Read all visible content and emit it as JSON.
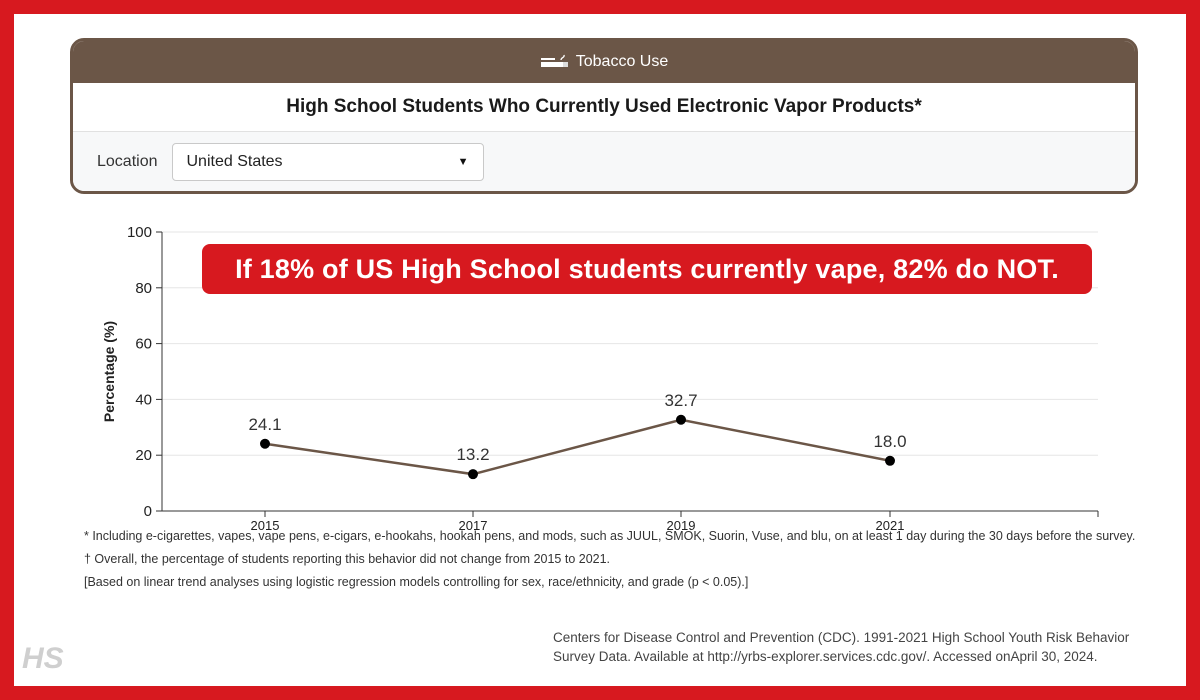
{
  "panel": {
    "category": "Tobacco Use",
    "title": "High School Students Who Currently Used Electronic Vapor Products*",
    "location_label": "Location",
    "location_value": "United States",
    "colors": {
      "header_bg": "#6b5647",
      "line": "#6b5647"
    }
  },
  "callout": "If 18% of US High School students currently vape, 82% do NOT.",
  "chart_data": {
    "type": "line",
    "title": "",
    "xlabel": "",
    "ylabel": "Percentage (%)",
    "x": [
      "2015",
      "2017",
      "2019",
      "2021"
    ],
    "series": [
      {
        "values": [
          24.1,
          13.2,
          32.7,
          18.0
        ],
        "labels": [
          "24.1",
          "13.2",
          "32.7",
          "18.0"
        ]
      }
    ],
    "ylim": [
      0,
      100
    ],
    "yticks": [
      0,
      20,
      40,
      60,
      80,
      100
    ],
    "grid": true,
    "legend": "none"
  },
  "notes": {
    "n1": "* Including e-cigarettes, vapes, vape pens, e-cigars, e-hookahs, hookah pens, and mods, such as JUUL, SMOK, Suorin, Vuse, and blu, on at least 1 day during the 30 days before the survey.",
    "n2": "† Overall, the percentage of students reporting this behavior did not change from 2015 to 2021.",
    "n3": "[Based on linear trend analyses using logistic regression models controlling for sex, race/ethnicity, and grade (p < 0.05).]"
  },
  "source": {
    "line1": "Centers for Disease Control and Prevention (CDC). 1991-2021 High School Youth Risk Behavior",
    "line2": "Survey Data. Available at http://yrbs-explorer.services.cdc.gov/. Accessed onApril 30, 2024."
  },
  "logo": {
    "text": "HS",
    "icon": "hs-logo"
  }
}
